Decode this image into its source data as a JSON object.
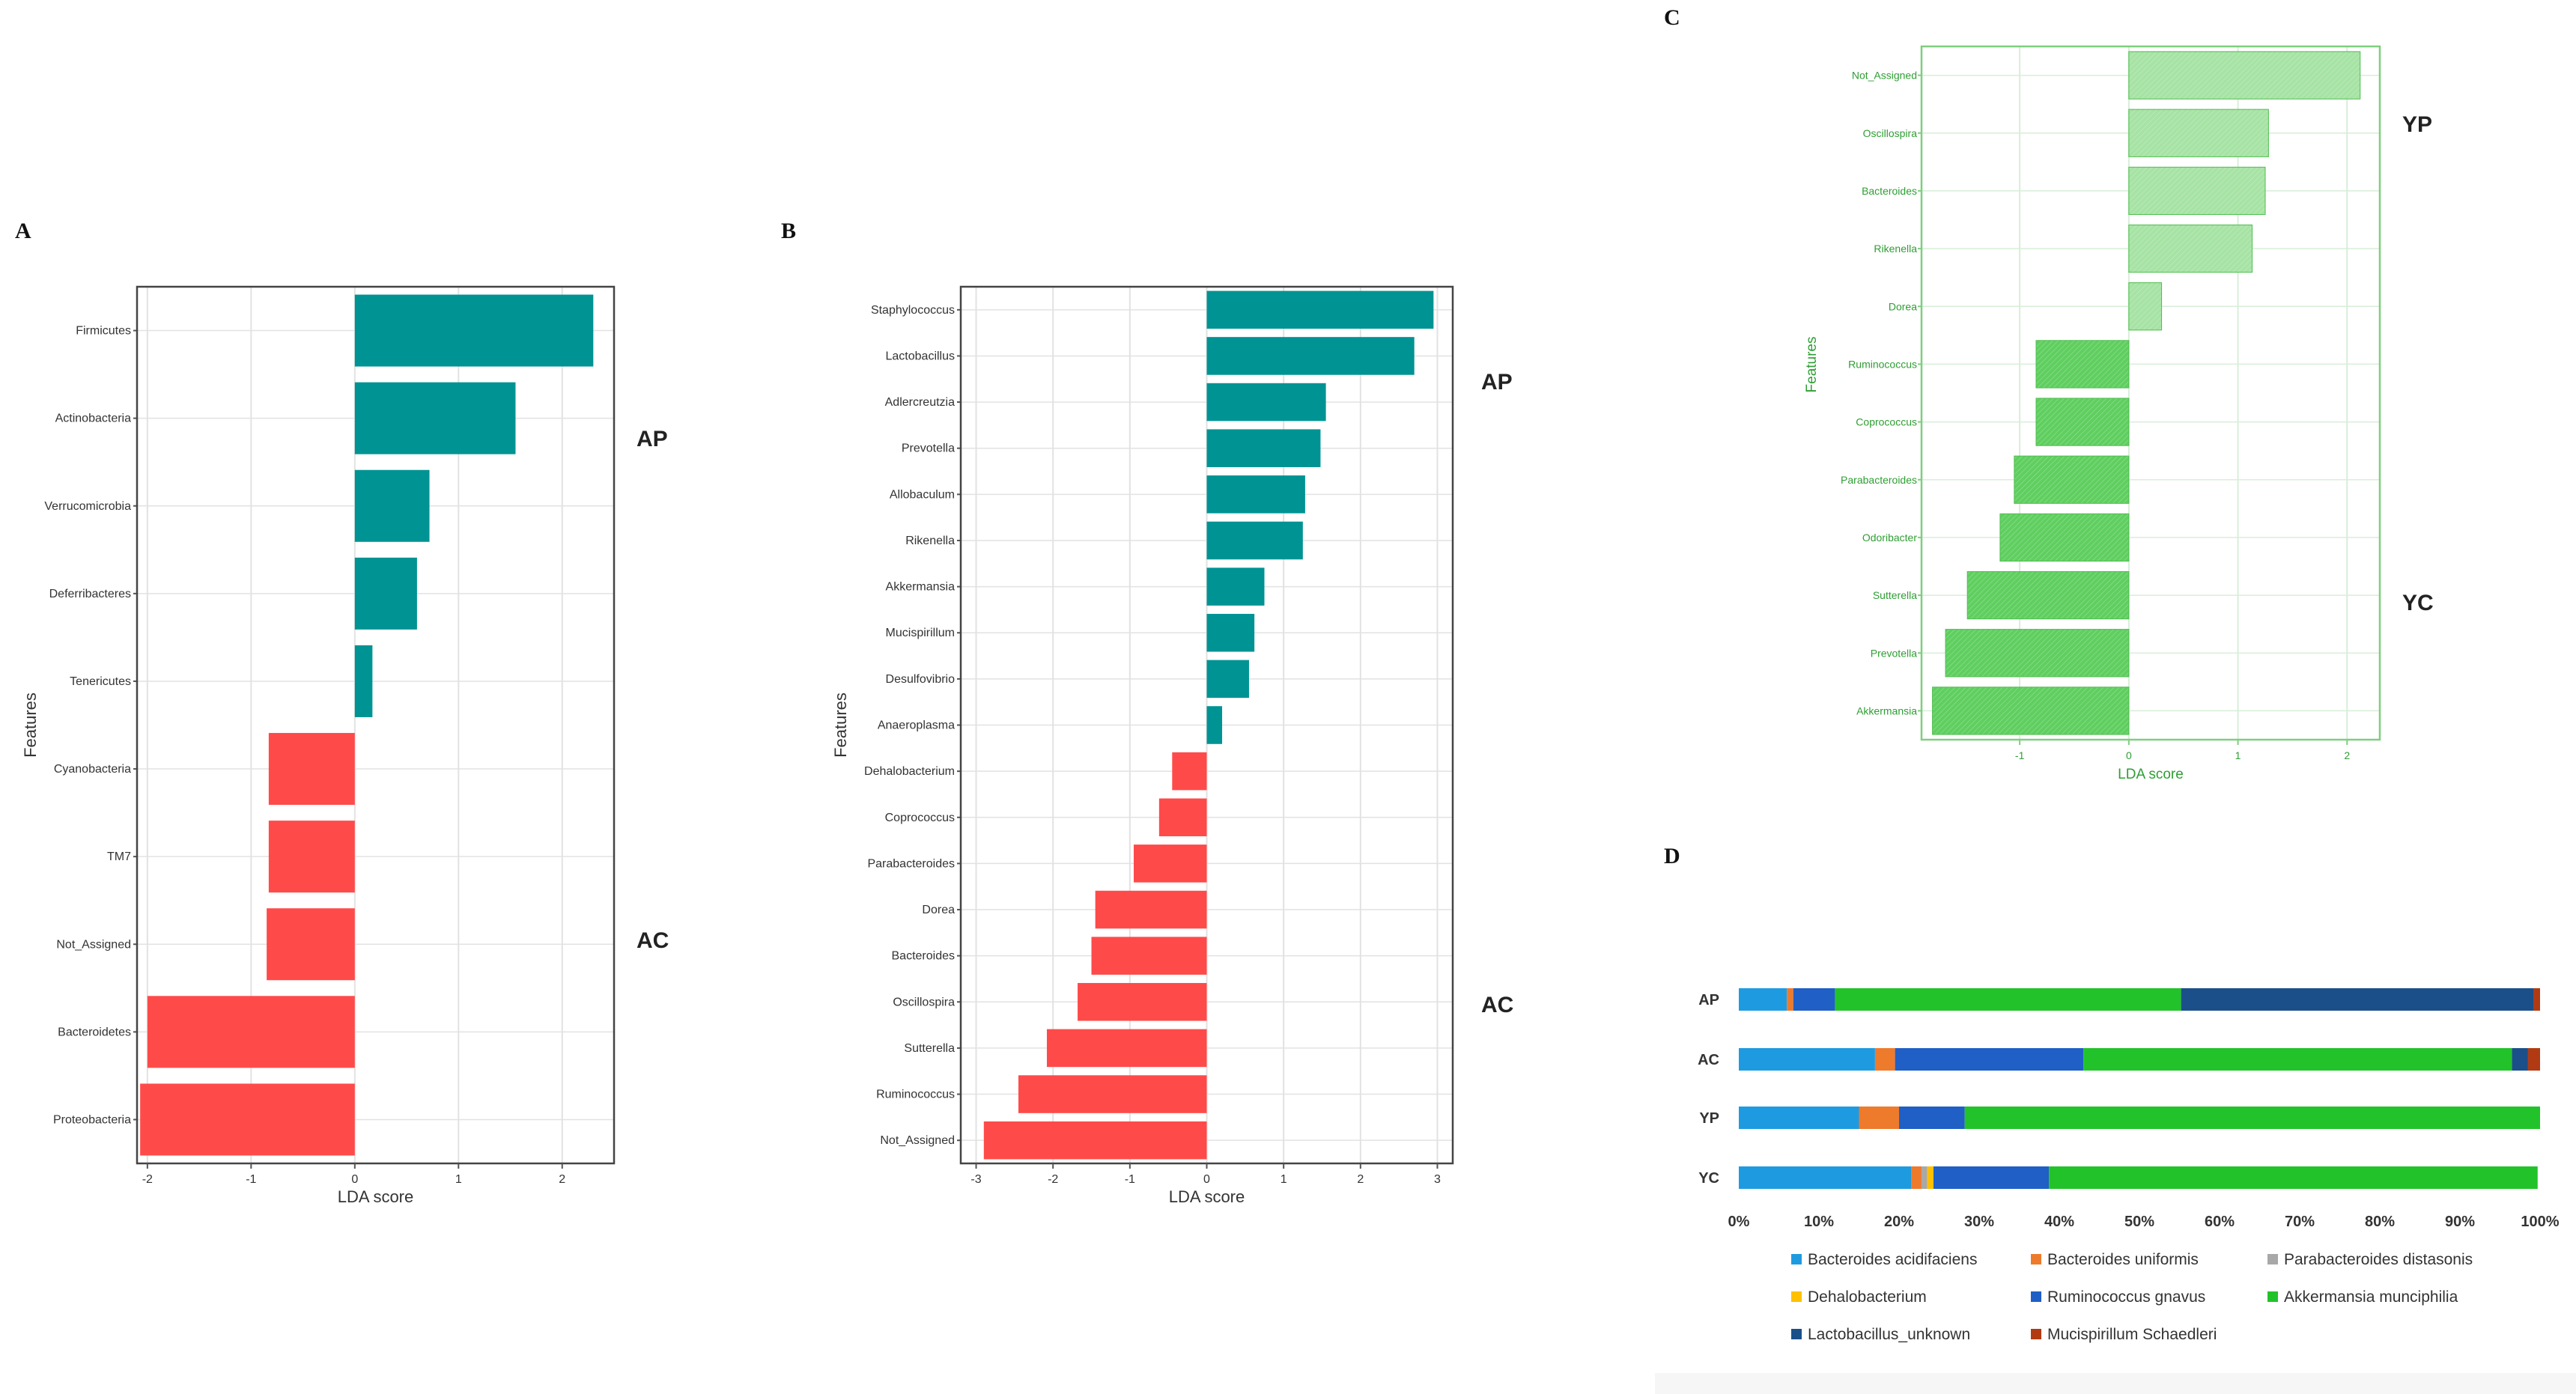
{
  "chart_data": [
    {
      "panel": "A",
      "type": "bar",
      "orientation": "horizontal",
      "xlabel": "LDA score",
      "ylabel": "Features",
      "xlim": [
        -2.1,
        2.5
      ],
      "xticks": [
        -2,
        -1,
        0,
        1,
        2
      ],
      "groups": [
        {
          "name": "AP",
          "color": "#009393"
        },
        {
          "name": "AC",
          "color": "#ff4a4a"
        }
      ],
      "categories": [
        "Firmicutes",
        "Actinobacteria",
        "Verrucomicrobia",
        "Deferribacteres",
        "Tenericutes",
        "Cyanobacteria",
        "TM7",
        "Not_Assigned",
        "Bacteroidetes",
        "Proteobacteria"
      ],
      "values": [
        2.3,
        1.55,
        0.72,
        0.6,
        0.17,
        -0.83,
        -0.83,
        -0.85,
        -2.0,
        -2.07
      ],
      "group_of": [
        "AP",
        "AP",
        "AP",
        "AP",
        "AP",
        "AC",
        "AC",
        "AC",
        "AC",
        "AC"
      ]
    },
    {
      "panel": "B",
      "type": "bar",
      "orientation": "horizontal",
      "xlabel": "LDA score",
      "ylabel": "Features",
      "xlim": [
        -3.2,
        3.2
      ],
      "xticks": [
        -3,
        -2,
        -1,
        0,
        1,
        2,
        3
      ],
      "groups": [
        {
          "name": "AP",
          "color": "#009393"
        },
        {
          "name": "AC",
          "color": "#ff4a4a"
        }
      ],
      "categories": [
        "Staphylococcus",
        "Lactobacillus",
        "Adlercreutzia",
        "Prevotella",
        "Allobaculum",
        "Rikenella",
        "Akkermansia",
        "Mucispirillum",
        "Desulfovibrio",
        "Anaeroplasma",
        "Dehalobacterium",
        "Coprococcus",
        "Parabacteroides",
        "Dorea",
        "Bacteroides",
        "Oscillospira",
        "Sutterella",
        "Ruminococcus",
        "Not_Assigned"
      ],
      "values": [
        2.95,
        2.7,
        1.55,
        1.48,
        1.28,
        1.25,
        0.75,
        0.62,
        0.55,
        0.2,
        -0.45,
        -0.62,
        -0.95,
        -1.45,
        -1.5,
        -1.68,
        -2.08,
        -2.45,
        -2.9
      ],
      "group_of": [
        "AP",
        "AP",
        "AP",
        "AP",
        "AP",
        "AP",
        "AP",
        "AP",
        "AP",
        "AP",
        "AC",
        "AC",
        "AC",
        "AC",
        "AC",
        "AC",
        "AC",
        "AC",
        "AC"
      ]
    },
    {
      "panel": "C",
      "type": "bar",
      "orientation": "horizontal",
      "xlabel": "LDA score",
      "ylabel": "Features",
      "xlim": [
        -1.9,
        2.3
      ],
      "xticks": [
        -1,
        0,
        1,
        2
      ],
      "groups": [
        {
          "name": "YP",
          "color": "#a6e3a4"
        },
        {
          "name": "YC",
          "color": "#5fcf5f"
        }
      ],
      "categories": [
        "Not_Assigned",
        "Oscillospira",
        "Bacteroides",
        "Rikenella",
        "Dorea",
        "Ruminococcus",
        "Coprococcus",
        "Parabacteroides",
        "Odoribacter",
        "Sutterella",
        "Prevotella",
        "Akkermansia"
      ],
      "values": [
        2.12,
        1.28,
        1.25,
        1.13,
        0.3,
        -0.85,
        -0.85,
        -1.05,
        -1.18,
        -1.48,
        -1.68,
        -1.8
      ],
      "group_of": [
        "YP",
        "YP",
        "YP",
        "YP",
        "YP",
        "YC",
        "YC",
        "YC",
        "YC",
        "YC",
        "YC",
        "YC"
      ]
    },
    {
      "panel": "D",
      "type": "bar",
      "orientation": "horizontal",
      "stacked": "percent",
      "categories": [
        "AP",
        "AC",
        "YP",
        "YC"
      ],
      "xticks": [
        "0%",
        "10%",
        "20%",
        "30%",
        "40%",
        "50%",
        "60%",
        "70%",
        "80%",
        "90%",
        "100%"
      ],
      "series": [
        {
          "name": "Bacteroides acidifaciens",
          "color": "#1e9be0",
          "values": [
            6.0,
            17.0,
            15.0,
            21.5
          ]
        },
        {
          "name": "Bacteroides uniformis",
          "color": "#ee7a2c",
          "values": [
            0.8,
            2.5,
            5.0,
            1.3
          ]
        },
        {
          "name": "Parabacteroides distasonis",
          "color": "#a8a8a8",
          "values": [
            0,
            0,
            0,
            0.7
          ]
        },
        {
          "name": "Dehalobacterium",
          "color": "#ffc000",
          "values": [
            0,
            0,
            0,
            0.8
          ]
        },
        {
          "name": "Ruminococcus gnavus",
          "color": "#1f5fc6",
          "values": [
            5.2,
            23.5,
            8.2,
            14.4
          ]
        },
        {
          "name": "Akkermansia munciphilia",
          "color": "#22c32a",
          "values": [
            43.2,
            53.5,
            71.8,
            61.0
          ]
        },
        {
          "name": "Lactobacillus_unknown",
          "color": "#1b4f8a",
          "values": [
            44.0,
            2.0,
            0,
            0
          ]
        },
        {
          "name": "Mucispirillum Schaedleri",
          "color": "#b23a12",
          "values": [
            0.8,
            1.5,
            0,
            0
          ]
        }
      ]
    }
  ]
}
